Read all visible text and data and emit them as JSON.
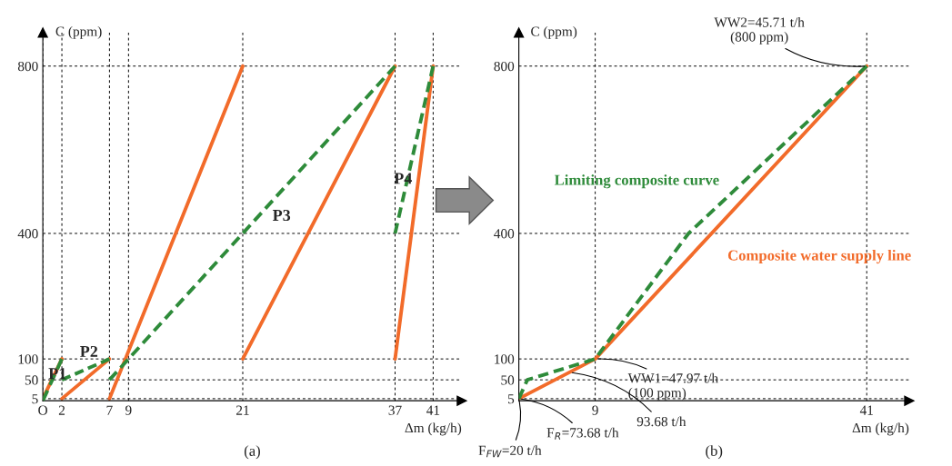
{
  "chart_data": [
    {
      "type": "line",
      "title": "(a)",
      "xlabel": "Δm (kg/h)",
      "ylabel": "C (ppm)",
      "xlim": [
        0,
        44
      ],
      "ylim": [
        0,
        880
      ],
      "xticks": [
        {
          "value": 0,
          "label": "O"
        },
        2,
        7,
        9,
        21,
        37,
        41
      ],
      "yticks": [
        5,
        50,
        100,
        400,
        800
      ],
      "grid": true,
      "series": [
        {
          "color": "#2e8b3a",
          "line_style": "dashed",
          "x": [
            0,
            2
          ],
          "values": [
            0,
            100
          ]
        },
        {
          "color": "#2e8b3a",
          "line_style": "dashed",
          "x": [
            2,
            7
          ],
          "values": [
            50,
            100
          ]
        },
        {
          "color": "#2e8b3a",
          "line_style": "dashed",
          "x": [
            7,
            9,
            37
          ],
          "values": [
            50,
            100,
            800
          ]
        },
        {
          "color": "#2e8b3a",
          "line_style": "dashed",
          "x": [
            37,
            41
          ],
          "values": [
            400,
            800
          ]
        },
        {
          "color": "#f26b2a",
          "line_style": "solid",
          "x": [
            0,
            2
          ],
          "values": [
            5,
            100
          ]
        },
        {
          "color": "#f26b2a",
          "line_style": "solid",
          "x": [
            2,
            7
          ],
          "values": [
            5,
            100
          ]
        },
        {
          "color": "#f26b2a",
          "line_style": "solid",
          "x": [
            7,
            21
          ],
          "values": [
            5,
            800
          ]
        },
        {
          "color": "#f26b2a",
          "line_style": "solid",
          "x": [
            21,
            37
          ],
          "values": [
            100,
            800
          ]
        },
        {
          "color": "#f26b2a",
          "line_style": "solid",
          "x": [
            37,
            41
          ],
          "values": [
            100,
            800
          ]
        }
      ],
      "annotations": [
        "P1",
        "P2",
        "P3",
        "P4"
      ]
    },
    {
      "type": "line",
      "title": "(b)",
      "xlabel": "Δm (kg/h)",
      "ylabel": "C (ppm)",
      "xlim": [
        0,
        46
      ],
      "ylim": [
        0,
        880
      ],
      "xticks": [
        9,
        41
      ],
      "yticks": [
        5,
        50,
        100,
        400,
        800
      ],
      "grid": true,
      "series": [
        {
          "name": "Limiting composite curve",
          "color": "#2e8b3a",
          "line_style": "dashed",
          "x": [
            0,
            1,
            9,
            20,
            41
          ],
          "values": [
            5,
            50,
            100,
            400,
            800
          ]
        },
        {
          "name": "Composite water supply line",
          "color": "#f26b2a",
          "line_style": "solid",
          "x": [
            0,
            9,
            41
          ],
          "values": [
            5,
            100,
            800
          ]
        }
      ],
      "annotations": [
        {
          "text": "WW2=45.71 t/h\n(800 ppm)",
          "x": 41,
          "y": 800
        },
        {
          "text": "WW1=47.97 t/h\n(100 ppm)",
          "x": 9,
          "y": 100
        },
        {
          "text": "93.68 t/h",
          "x": 6,
          "y": 68
        },
        {
          "text": "F$_{R}$=73.68 t/h",
          "x": 0,
          "y": 5
        },
        {
          "text": "F$_{FW}$=20 t/h",
          "x": 0,
          "y": 5
        }
      ]
    }
  ]
}
